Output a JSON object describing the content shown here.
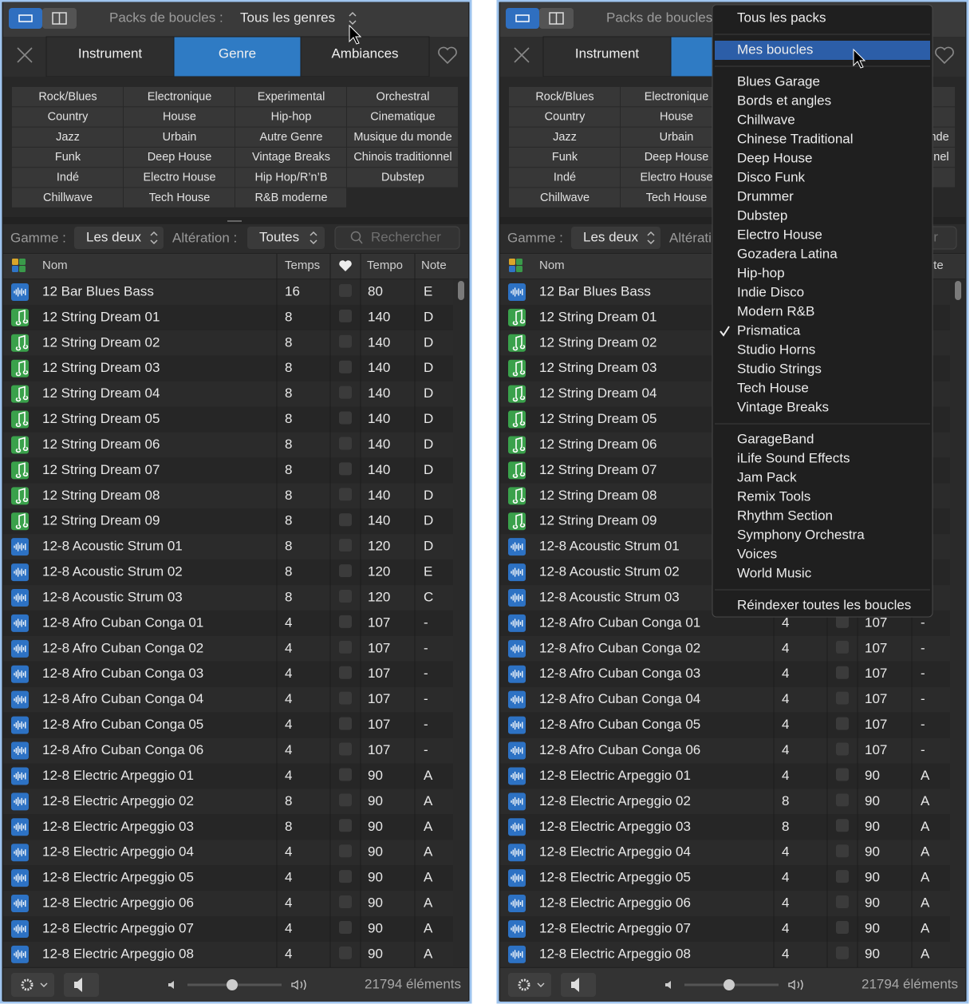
{
  "panel": {
    "header": {
      "label": "Packs de boucles :",
      "value": "Tous les genres"
    },
    "tabs": [
      "Instrument",
      "Genre",
      "Ambiances"
    ],
    "active_tab": 1,
    "genres": [
      [
        "Rock/Blues",
        "Electronique",
        "Experimental",
        "Orchestral"
      ],
      [
        "Country",
        "House",
        "Hip-hop",
        "Cinematique"
      ],
      [
        "Jazz",
        "Urbain",
        "Autre Genre",
        "Musique du monde"
      ],
      [
        "Funk",
        "Deep House",
        "Vintage Breaks",
        "Chinois traditionnel"
      ],
      [
        "Indé",
        "Electro House",
        "Hip Hop/R’n’B",
        "Dubstep"
      ],
      [
        "Chillwave",
        "Tech House",
        "R&B moderne"
      ]
    ],
    "filters": {
      "scale_label": "Gamme :",
      "scale_value": "Les deux",
      "alt_label": "Altération :",
      "alt_value": "Toutes",
      "search": "Rechercher"
    },
    "columns": {
      "name": "Nom",
      "beats": "Temps",
      "tempo": "Tempo",
      "key": "Note"
    },
    "rows": [
      {
        "icon": "audio",
        "name": "12 Bar Blues Bass",
        "beats": 16,
        "tempo": 80,
        "key": "E"
      },
      {
        "icon": "midi",
        "name": "12 String Dream 01",
        "beats": 8,
        "tempo": 140,
        "key": "D"
      },
      {
        "icon": "midi",
        "name": "12 String Dream 02",
        "beats": 8,
        "tempo": 140,
        "key": "D"
      },
      {
        "icon": "midi",
        "name": "12 String Dream 03",
        "beats": 8,
        "tempo": 140,
        "key": "D"
      },
      {
        "icon": "midi",
        "name": "12 String Dream 04",
        "beats": 8,
        "tempo": 140,
        "key": "D"
      },
      {
        "icon": "midi",
        "name": "12 String Dream 05",
        "beats": 8,
        "tempo": 140,
        "key": "D"
      },
      {
        "icon": "midi",
        "name": "12 String Dream 06",
        "beats": 8,
        "tempo": 140,
        "key": "D"
      },
      {
        "icon": "midi",
        "name": "12 String Dream 07",
        "beats": 8,
        "tempo": 140,
        "key": "D"
      },
      {
        "icon": "midi",
        "name": "12 String Dream 08",
        "beats": 8,
        "tempo": 140,
        "key": "D"
      },
      {
        "icon": "midi",
        "name": "12 String Dream 09",
        "beats": 8,
        "tempo": 140,
        "key": "D"
      },
      {
        "icon": "audio",
        "name": "12-8 Acoustic Strum 01",
        "beats": 8,
        "tempo": 120,
        "key": "D"
      },
      {
        "icon": "audio",
        "name": "12-8 Acoustic Strum 02",
        "beats": 8,
        "tempo": 120,
        "key": "E"
      },
      {
        "icon": "audio",
        "name": "12-8 Acoustic Strum 03",
        "beats": 8,
        "tempo": 120,
        "key": "C"
      },
      {
        "icon": "audio",
        "name": "12-8 Afro Cuban Conga 01",
        "beats": 4,
        "tempo": 107,
        "key": "-"
      },
      {
        "icon": "audio",
        "name": "12-8 Afro Cuban Conga 02",
        "beats": 4,
        "tempo": 107,
        "key": "-"
      },
      {
        "icon": "audio",
        "name": "12-8 Afro Cuban Conga 03",
        "beats": 4,
        "tempo": 107,
        "key": "-"
      },
      {
        "icon": "audio",
        "name": "12-8 Afro Cuban Conga 04",
        "beats": 4,
        "tempo": 107,
        "key": "-"
      },
      {
        "icon": "audio",
        "name": "12-8 Afro Cuban Conga 05",
        "beats": 4,
        "tempo": 107,
        "key": "-"
      },
      {
        "icon": "audio",
        "name": "12-8 Afro Cuban Conga 06",
        "beats": 4,
        "tempo": 107,
        "key": "-"
      },
      {
        "icon": "audio",
        "name": "12-8 Electric Arpeggio 01",
        "beats": 4,
        "tempo": 90,
        "key": "A"
      },
      {
        "icon": "audio",
        "name": "12-8 Electric Arpeggio 02",
        "beats": 8,
        "tempo": 90,
        "key": "A"
      },
      {
        "icon": "audio",
        "name": "12-8 Electric Arpeggio 03",
        "beats": 8,
        "tempo": 90,
        "key": "A"
      },
      {
        "icon": "audio",
        "name": "12-8 Electric Arpeggio 04",
        "beats": 4,
        "tempo": 90,
        "key": "A"
      },
      {
        "icon": "audio",
        "name": "12-8 Electric Arpeggio 05",
        "beats": 4,
        "tempo": 90,
        "key": "A"
      },
      {
        "icon": "audio",
        "name": "12-8 Electric Arpeggio 06",
        "beats": 4,
        "tempo": 90,
        "key": "A"
      },
      {
        "icon": "audio",
        "name": "12-8 Electric Arpeggio 07",
        "beats": 4,
        "tempo": 90,
        "key": "A"
      },
      {
        "icon": "audio",
        "name": "12-8 Electric Arpeggio 08",
        "beats": 4,
        "tempo": 90,
        "key": "A"
      }
    ],
    "footer": {
      "count": "21794 éléments"
    }
  },
  "menu": {
    "sections": [
      [
        "Tous les packs"
      ],
      [
        "Mes boucles"
      ],
      [
        "Blues Garage",
        "Bords et angles",
        "Chillwave",
        "Chinese Traditional",
        "Deep House",
        "Disco Funk",
        "Drummer",
        "Dubstep",
        "Electro House",
        "Gozadera Latina",
        "Hip-hop",
        "Indie Disco",
        "Modern R&B",
        "Prismatica",
        "Studio Horns",
        "Studio Strings",
        "Tech House",
        "Vintage Breaks"
      ],
      [
        "GarageBand",
        "iLife Sound Effects",
        "Jam Pack",
        "Remix Tools",
        "Rhythm Section",
        "Symphony Orchestra",
        "Voices",
        "World Music"
      ],
      [
        "Réindexer toutes les boucles"
      ]
    ],
    "selected": [
      1,
      0
    ],
    "checked": [
      2,
      13
    ]
  }
}
